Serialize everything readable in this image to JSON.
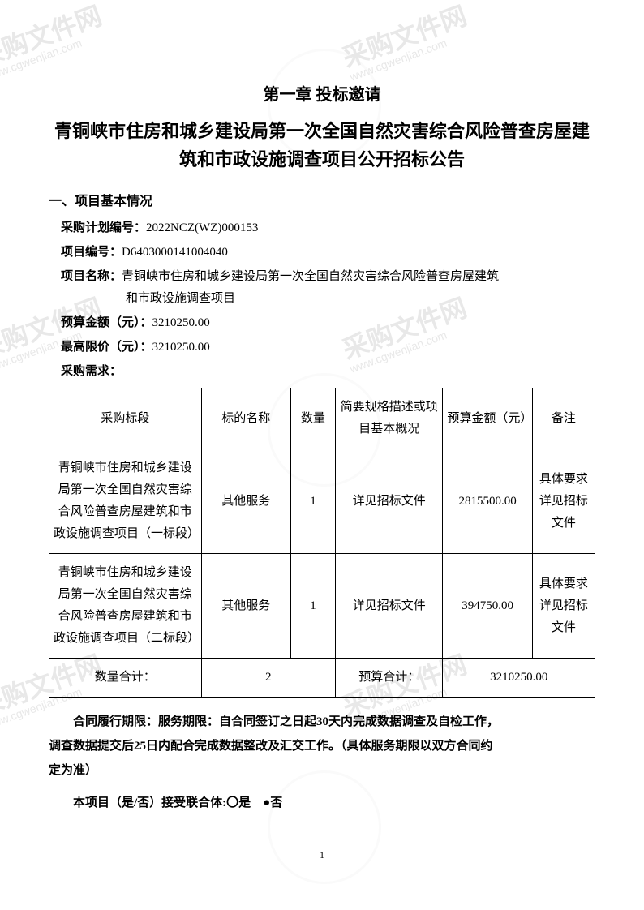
{
  "watermark": {
    "main": "采购文件网",
    "sub": "www.cgwenjian.com"
  },
  "chapter_title": "第一章 投标邀请",
  "main_title": "青铜峡市住房和城乡建设局第一次全国自然灾害综合风险普查房屋建筑和市政设施调查项目公开招标公告",
  "section1_title": "一、项目基本情况",
  "plan_no_label": "采购计划编号：",
  "plan_no_value": "2022NCZ(WZ)000153",
  "project_no_label": "项目编号：",
  "project_no_value": "D6403000141004040",
  "project_name_label": "项目名称：",
  "project_name_value": "青铜峡市住房和城乡建设局第一次全国自然灾害综合风险普查房屋建筑",
  "project_name_value2": "和市政设施调查项目",
  "budget_label": "预算金额（元）：",
  "budget_value": "3210250.00",
  "maxprice_label": "最高限价（元）：",
  "maxprice_value": "3210250.00",
  "requirement_label": "采购需求：",
  "table": {
    "headers": [
      "采购标段",
      "标的名称",
      "数量",
      "简要规格描述或项目基本概况",
      "预算金额（元）",
      "备注"
    ],
    "rows": [
      {
        "section": "青铜峡市住房和城乡建设局第一次全国自然灾害综合风险普查房屋建筑和市政设施调查项目（一标段）",
        "name": "其他服务",
        "qty": "1",
        "spec": "详见招标文件",
        "budget": "2815500.00",
        "remark": "具体要求详见招标文件"
      },
      {
        "section": "青铜峡市住房和城乡建设局第一次全国自然灾害综合风险普查房屋建筑和市政设施调查项目（二标段）",
        "name": "其他服务",
        "qty": "1",
        "spec": "详见招标文件",
        "budget": "394750.00",
        "remark": "具体要求详见招标文件"
      }
    ],
    "footer": {
      "qty_total_label": "数量合计：",
      "qty_total_value": "2",
      "budget_total_label": "预算合计：",
      "budget_total_value": "3210250.00"
    }
  },
  "contract_text1": "合同履行期限：服务期限：自合同签订之日起30天内完成数据调查及自检工作，",
  "contract_text2": "调查数据提交后25日内配合完成数据整改及汇交工作。（具体服务期限以双方合同约",
  "contract_text3": "定为准）",
  "consortium_text": "本项目（是/否）接受联合体:〇是　●否",
  "page_number": "1"
}
